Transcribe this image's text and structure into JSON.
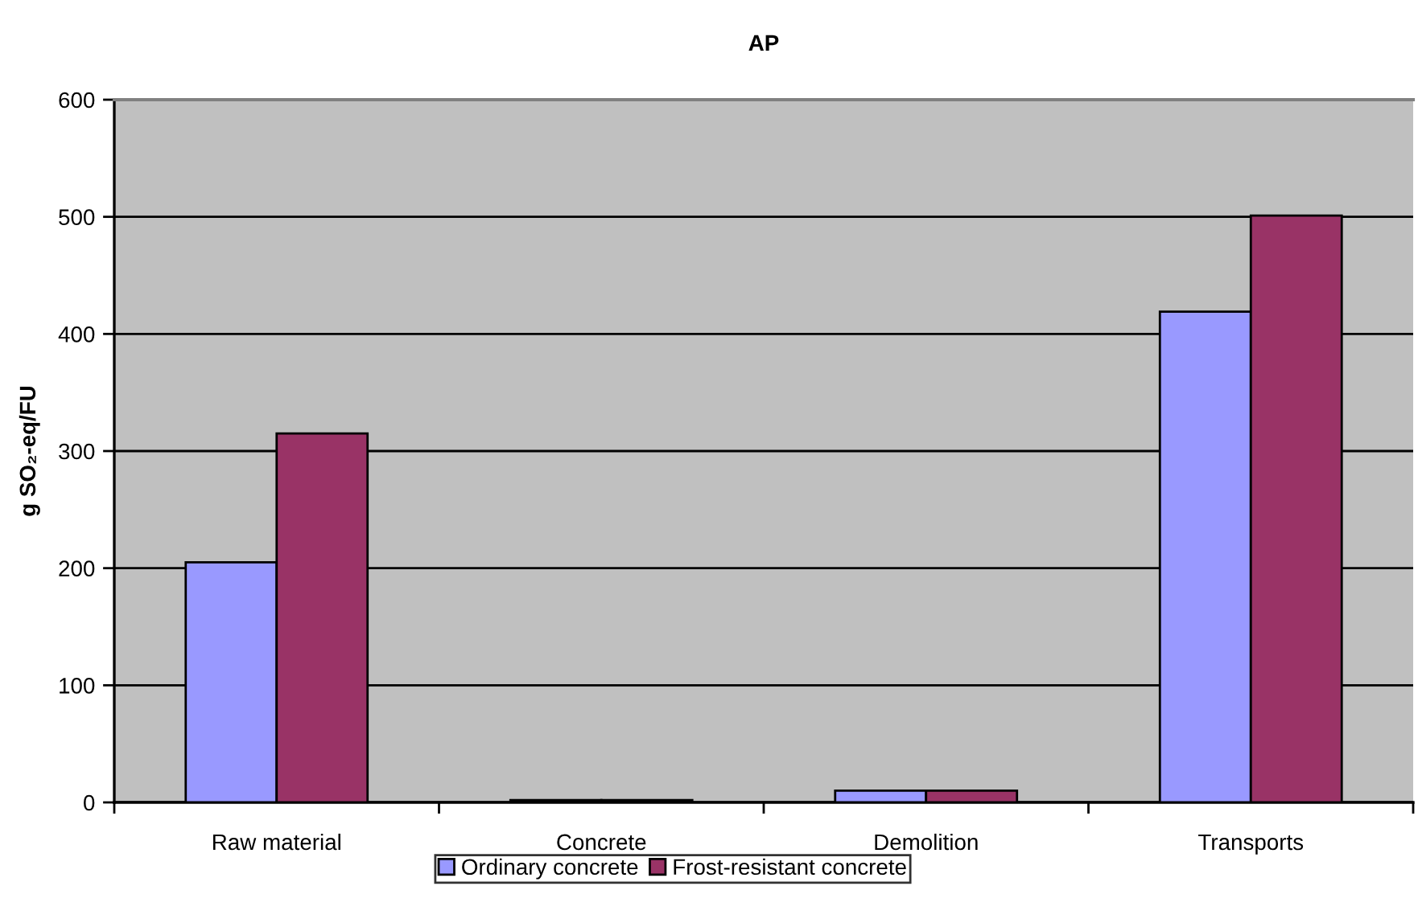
{
  "chart_data": {
    "type": "bar",
    "title": "AP",
    "ylabel": "g SO₂-eq/FU",
    "categories": [
      "Raw material",
      "Concrete",
      "Demolition",
      "Transports"
    ],
    "series": [
      {
        "name": "Ordinary concrete",
        "color": "#9999ff",
        "values": [
          205,
          2,
          10,
          419
        ]
      },
      {
        "name": "Frost-resistant concrete",
        "color": "#993366",
        "values": [
          315,
          2,
          10,
          501
        ]
      }
    ],
    "ylim": [
      0,
      600
    ],
    "yticks": [
      0,
      100,
      200,
      300,
      400,
      500,
      600
    ],
    "grid": "y",
    "legend": "bottom"
  }
}
